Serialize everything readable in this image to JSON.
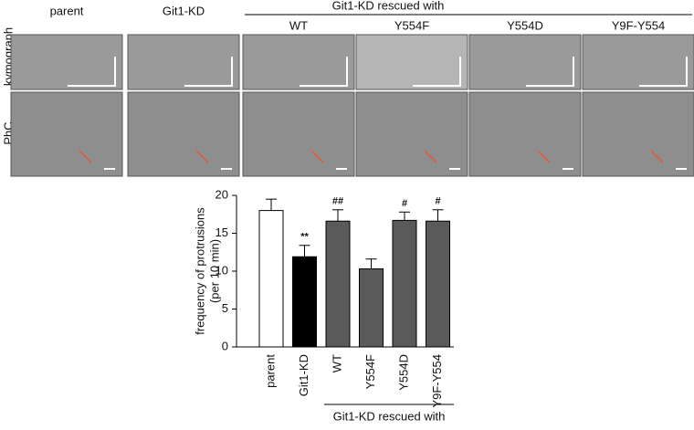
{
  "panels": {
    "group_label": "Git1-KD rescued with",
    "columns": [
      "parent",
      "Git1-KD",
      "WT",
      "Y554F",
      "Y554D",
      "Y9F-Y554"
    ],
    "rows": [
      "kymograph",
      "PhC"
    ]
  },
  "chart_data": {
    "type": "bar",
    "categories": [
      "parent",
      "Git1-KD",
      "WT",
      "Y554F",
      "Y554D",
      "Y9F-Y554"
    ],
    "values": [
      18,
      11.9,
      16.6,
      10.3,
      16.7,
      16.6
    ],
    "errors": [
      1.5,
      1.5,
      1.5,
      1.3,
      1.1,
      1.5
    ],
    "colors": [
      "#ffffff",
      "#000000",
      "#5a5a5a",
      "#5a5a5a",
      "#5a5a5a",
      "#5a5a5a"
    ],
    "annotations": [
      null,
      "**",
      "##",
      null,
      "#",
      "#"
    ],
    "ylabel": [
      "frequency of protrusions",
      "(per 10 min)"
    ],
    "group_label": "Git1-KD rescued with",
    "ylim": [
      0,
      20
    ],
    "yticks": [
      0,
      5,
      10,
      15,
      20
    ]
  }
}
